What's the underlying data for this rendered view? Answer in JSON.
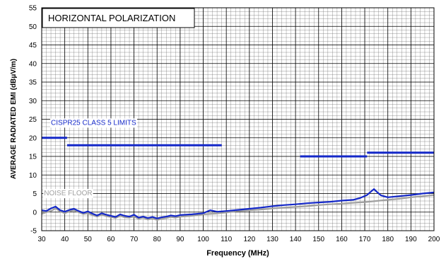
{
  "chart_data": {
    "type": "line",
    "title": "HORIZONTAL POLARIZATION",
    "xlabel": "Frequency (MHz)",
    "ylabel": "AVERAGE RADIATED EMI (dBμV/m)",
    "xlim": [
      30,
      200
    ],
    "ylim": [
      -5,
      55
    ],
    "xticks": [
      30,
      40,
      50,
      60,
      70,
      80,
      90,
      100,
      110,
      120,
      130,
      140,
      150,
      160,
      170,
      180,
      190,
      200
    ],
    "yticks": [
      -5,
      0,
      5,
      10,
      15,
      20,
      25,
      30,
      35,
      40,
      45,
      50,
      55
    ],
    "x_minor_step": 2,
    "y_minor_step": 1,
    "grid": true,
    "annotations": [
      {
        "text": "CISPR25 CLASS 5 LIMITS",
        "x": 34,
        "y": 23.5,
        "color": "#1428c8"
      },
      {
        "text": "NOISE FLOOR",
        "x": 31,
        "y": 4.5,
        "color": "#a0a0a0"
      }
    ],
    "limits": {
      "name": "CISPR25 CLASS 5 LIMITS",
      "color": "#1428c8",
      "segments": [
        {
          "x": [
            30,
            41
          ],
          "y": 20
        },
        {
          "x": [
            41,
            108
          ],
          "y": 18
        },
        {
          "x": [
            142,
            171
          ],
          "y": 15
        },
        {
          "x": [
            171,
            200
          ],
          "y": 16
        }
      ]
    },
    "series": [
      {
        "name": "NOISE FLOOR",
        "color": "#a0a0a0",
        "x": [
          30,
          32,
          34,
          36,
          38,
          40,
          42,
          44,
          46,
          48,
          50,
          52,
          54,
          56,
          58,
          60,
          62,
          64,
          66,
          68,
          70,
          72,
          74,
          76,
          78,
          80,
          82,
          84,
          86,
          88,
          90,
          95,
          100,
          105,
          110,
          115,
          120,
          125,
          130,
          135,
          140,
          145,
          150,
          155,
          160,
          165,
          170,
          175,
          180,
          185,
          190,
          195,
          200
        ],
        "y": [
          -0.5,
          0,
          0.3,
          1.0,
          0.2,
          -0.3,
          0.2,
          0.5,
          0,
          -0.5,
          -0.3,
          -0.8,
          -1.2,
          -0.7,
          -1.1,
          -1.3,
          -1.6,
          -1.0,
          -1.4,
          -1.5,
          -1.2,
          -1.8,
          -1.5,
          -2.0,
          -1.7,
          -2.1,
          -1.8,
          -1.6,
          -1.3,
          -1.5,
          -1.2,
          -1.0,
          -0.6,
          -0.4,
          -0.1,
          0.3,
          0.5,
          0.7,
          1.0,
          1.2,
          1.4,
          1.6,
          1.9,
          2.1,
          2.3,
          2.5,
          2.7,
          3.0,
          3.3,
          3.6,
          4.0,
          4.3,
          4.6
        ]
      },
      {
        "name": "EMI",
        "color": "#1428c8",
        "x": [
          30,
          32,
          34,
          36,
          38,
          40,
          42,
          44,
          46,
          48,
          50,
          52,
          54,
          56,
          58,
          60,
          62,
          64,
          66,
          68,
          70,
          72,
          74,
          76,
          78,
          80,
          82,
          84,
          86,
          88,
          90,
          95,
          100,
          103,
          106,
          110,
          115,
          120,
          125,
          130,
          135,
          140,
          145,
          150,
          155,
          160,
          165,
          168,
          171,
          173,
          174,
          175,
          177,
          180,
          185,
          190,
          195,
          200
        ],
        "y": [
          0.5,
          0.3,
          1.0,
          1.5,
          0.5,
          0.1,
          0.6,
          0.9,
          0.3,
          -0.2,
          0.2,
          -0.4,
          -0.9,
          -0.3,
          -0.7,
          -1.0,
          -1.3,
          -0.6,
          -1.0,
          -1.2,
          -0.7,
          -1.5,
          -1.2,
          -1.6,
          -1.3,
          -1.7,
          -1.4,
          -1.2,
          -0.9,
          -1.1,
          -0.8,
          -0.6,
          -0.3,
          0.5,
          0.1,
          0.3,
          0.6,
          0.9,
          1.2,
          1.6,
          1.9,
          2.1,
          2.4,
          2.6,
          2.8,
          3.1,
          3.3,
          3.8,
          4.6,
          5.7,
          6.2,
          5.6,
          4.5,
          4.0,
          4.3,
          4.6,
          5.0,
          5.3
        ]
      }
    ]
  }
}
